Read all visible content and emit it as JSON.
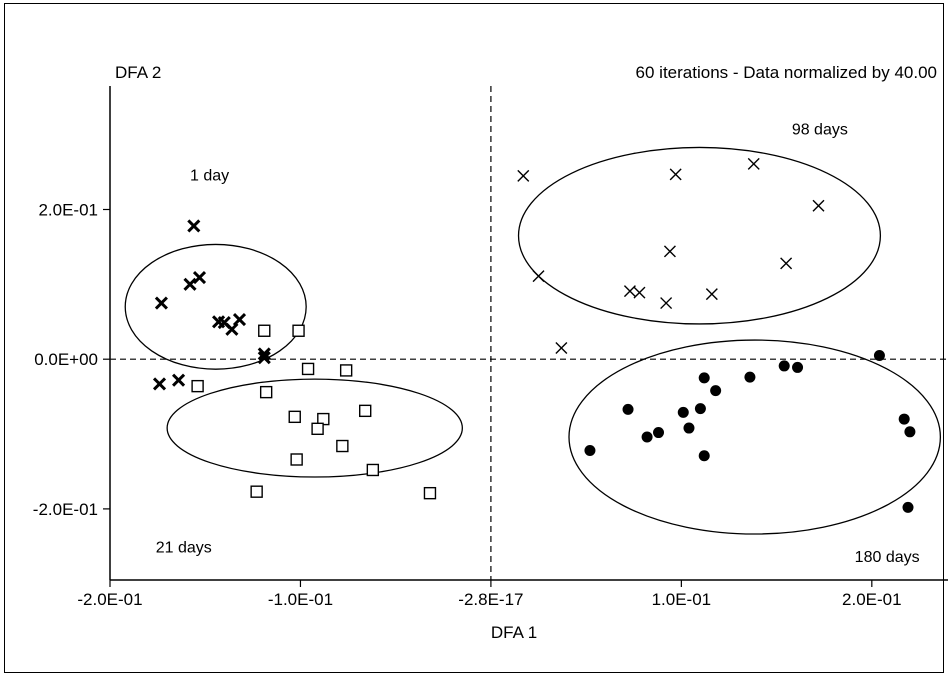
{
  "chart_data": {
    "type": "scatter",
    "title_left": "DFA 2",
    "title_right": "60 iterations - Data normalized by 40.00",
    "xlabel": "DFA 1",
    "ylabel": "DFA 2",
    "xlim": [
      -0.2,
      0.24
    ],
    "ylim": [
      -0.295,
      0.365
    ],
    "x_ticks": [
      {
        "value": -0.2,
        "label": "-2.0E-01"
      },
      {
        "value": -0.1,
        "label": "-1.0E-01"
      },
      {
        "value": 0.0,
        "label": "-2.8E-17"
      },
      {
        "value": 0.1,
        "label": "1.0E-01"
      },
      {
        "value": 0.2,
        "label": "2.0E-01"
      }
    ],
    "y_ticks": [
      {
        "value": 0.2,
        "label": "2.0E-01"
      },
      {
        "value": 0.0,
        "label": "0.0E+00"
      },
      {
        "value": -0.2,
        "label": "-2.0E-01"
      }
    ],
    "zero_lines": {
      "x": 0.0,
      "y": 0.0,
      "style": "dashed"
    },
    "grid": false,
    "series": [
      {
        "name": "1 day",
        "marker": "bold-x",
        "label_pos": [
          -0.158,
          0.247
        ],
        "ellipse": {
          "cx": -0.1445,
          "cy": 0.07,
          "rx": 0.0475,
          "ry": 0.2
        },
        "points": [
          [
            -0.156,
            0.178
          ],
          [
            -0.158,
            0.1
          ],
          [
            -0.153,
            0.109
          ],
          [
            -0.173,
            0.075
          ],
          [
            -0.143,
            0.05
          ],
          [
            -0.14,
            0.049
          ],
          [
            -0.136,
            0.04
          ],
          [
            -0.132,
            0.053
          ],
          [
            -0.119,
            0.007
          ],
          [
            -0.119,
            0.002
          ],
          [
            -0.174,
            -0.033
          ],
          [
            -0.164,
            -0.028
          ]
        ]
      },
      {
        "name": "21 days",
        "marker": "square",
        "label_pos": [
          -0.176,
          -0.25
        ],
        "ellipse": {
          "cx": -0.0925,
          "cy": -0.092,
          "rx": 0.0775,
          "ry": 0.157
        },
        "points": [
          [
            -0.119,
            0.038
          ],
          [
            -0.101,
            0.038
          ],
          [
            -0.154,
            -0.036
          ],
          [
            -0.118,
            -0.044
          ],
          [
            -0.096,
            -0.013
          ],
          [
            -0.076,
            -0.015
          ],
          [
            -0.103,
            -0.077
          ],
          [
            -0.088,
            -0.08
          ],
          [
            -0.091,
            -0.093
          ],
          [
            -0.066,
            -0.069
          ],
          [
            -0.078,
            -0.116
          ],
          [
            -0.102,
            -0.134
          ],
          [
            -0.062,
            -0.148
          ],
          [
            -0.123,
            -0.177
          ],
          [
            -0.032,
            -0.179
          ]
        ]
      },
      {
        "name": "98 days",
        "marker": "x",
        "label_pos": [
          0.158,
          0.308
        ],
        "ellipse": {
          "cx": 0.1095,
          "cy": 0.165,
          "rx": 0.095,
          "ry": 0.283
        },
        "points": [
          [
            0.017,
            0.245
          ],
          [
            0.097,
            0.247
          ],
          [
            0.138,
            0.261
          ],
          [
            0.172,
            0.205
          ],
          [
            0.025,
            0.111
          ],
          [
            0.094,
            0.144
          ],
          [
            0.155,
            0.128
          ],
          [
            0.073,
            0.091
          ],
          [
            0.078,
            0.089
          ],
          [
            0.092,
            0.075
          ],
          [
            0.116,
            0.087
          ],
          [
            0.037,
            0.015
          ]
        ]
      },
      {
        "name": "180 days",
        "marker": "filled-circle",
        "label_pos": [
          0.191,
          -0.263
        ],
        "ellipse": {
          "cx": 0.1385,
          "cy": -0.104,
          "rx": 0.0975,
          "ry": 0.311
        },
        "points": [
          [
            0.204,
            0.005
          ],
          [
            0.154,
            -0.009
          ],
          [
            0.161,
            -0.011
          ],
          [
            0.112,
            -0.025
          ],
          [
            0.136,
            -0.024
          ],
          [
            0.118,
            -0.042
          ],
          [
            0.072,
            -0.067
          ],
          [
            0.101,
            -0.071
          ],
          [
            0.11,
            -0.066
          ],
          [
            0.104,
            -0.092
          ],
          [
            0.088,
            -0.098
          ],
          [
            0.082,
            -0.104
          ],
          [
            0.052,
            -0.122
          ],
          [
            0.112,
            -0.129
          ],
          [
            0.217,
            -0.08
          ],
          [
            0.22,
            -0.097
          ],
          [
            0.219,
            -0.198
          ]
        ]
      }
    ]
  }
}
